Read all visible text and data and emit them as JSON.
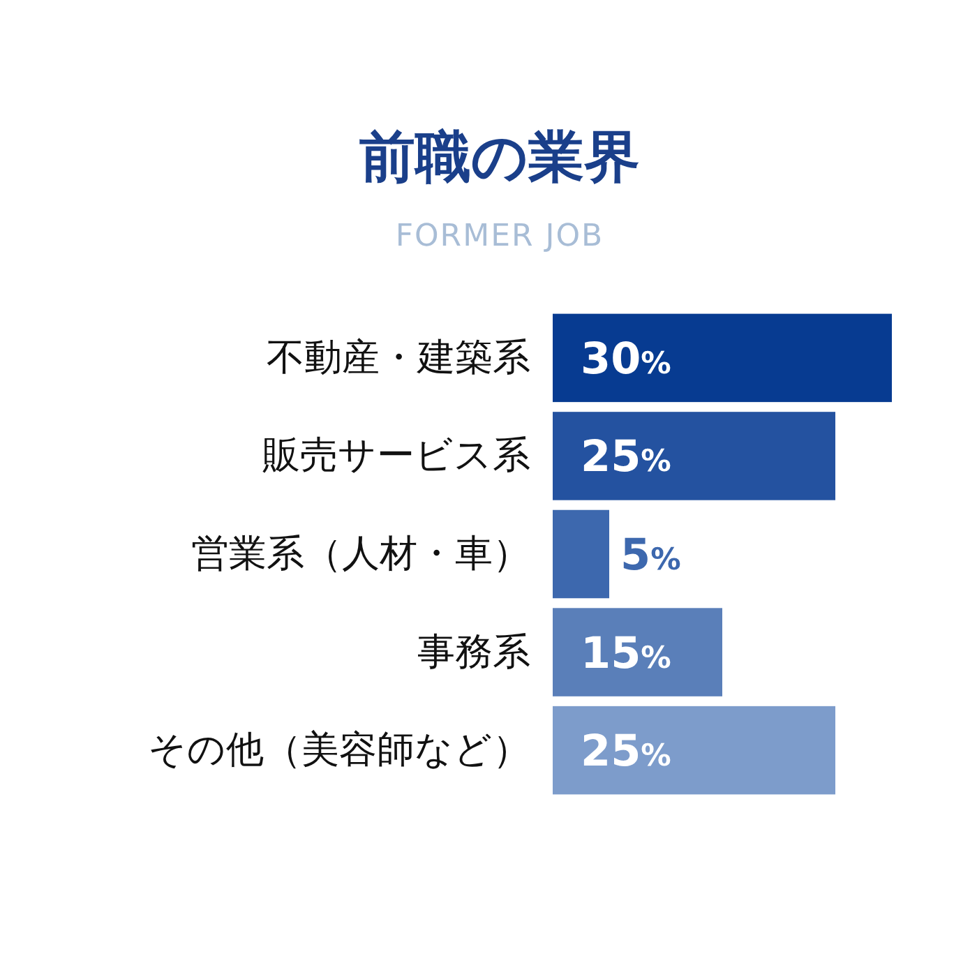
{
  "chart_data": {
    "type": "bar",
    "orientation": "horizontal",
    "title": "前職の業界",
    "subtitle": "FORMER JOB",
    "categories": [
      "不動産・建築系",
      "販売サービス系",
      "営業系（人材・車）",
      "事務系",
      "その他（美容師など）"
    ],
    "values": [
      30,
      25,
      5,
      15,
      25
    ],
    "colors": [
      "#073b91",
      "#2452a0",
      "#3d68ae",
      "#5a7fb9",
      "#7d9ccb"
    ],
    "value_labels": [
      "30%",
      "25%",
      "5%",
      "15%",
      "25%"
    ]
  }
}
